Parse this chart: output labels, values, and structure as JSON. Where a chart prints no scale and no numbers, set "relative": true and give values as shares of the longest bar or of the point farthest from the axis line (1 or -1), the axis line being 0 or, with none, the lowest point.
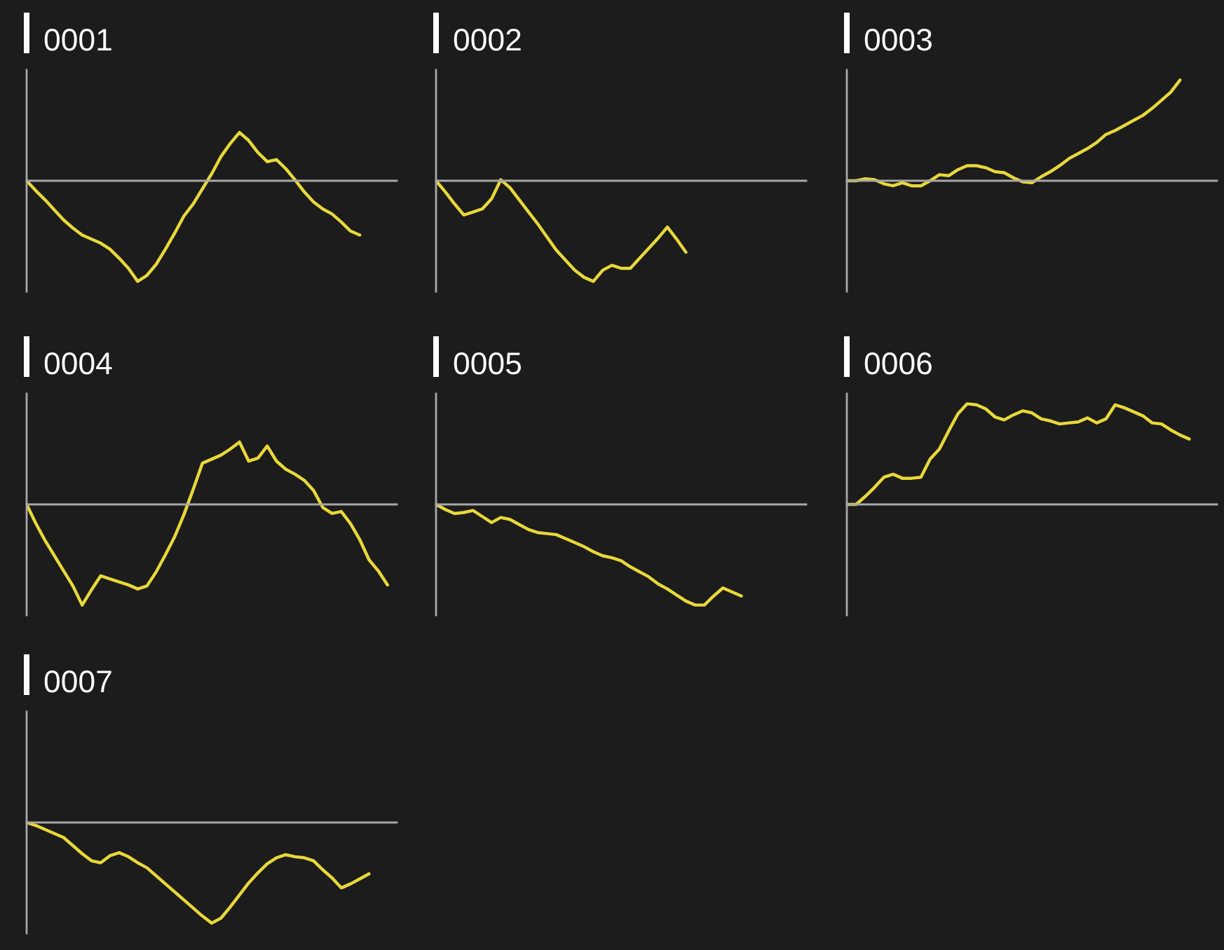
{
  "chart_data": [
    {
      "type": "line",
      "title": "0001",
      "relative": true,
      "categories": [
        null,
        null,
        null,
        null,
        null,
        null,
        null,
        null,
        null,
        null,
        null,
        null,
        null,
        null,
        null,
        null,
        null,
        null,
        null,
        null,
        null,
        null,
        null,
        null,
        null,
        null,
        null,
        null,
        null,
        null,
        null,
        null,
        null,
        null,
        null,
        null,
        null,
        null,
        null,
        null,
        null
      ],
      "series": [
        {
          "color": "#e8d83a",
          "values": [
            0,
            -0.1,
            -0.19,
            -0.29,
            -0.39,
            -0.47,
            -0.54,
            -0.58,
            -0.62,
            -0.68,
            -0.77,
            -0.87,
            -1,
            -0.94,
            -0.83,
            -0.68,
            -0.52,
            -0.35,
            -0.23,
            -0.08,
            0.07,
            0.24,
            0.37,
            0.48,
            0.4,
            0.28,
            0.19,
            0.21,
            0.12,
            0.01,
            -0.11,
            -0.21,
            -0.28,
            -0.33,
            -0.41,
            -0.5,
            -0.54,
            null,
            null,
            null,
            null
          ]
        }
      ]
    },
    {
      "type": "line",
      "title": "0002",
      "relative": true,
      "categories": [
        null,
        null,
        null,
        null,
        null,
        null,
        null,
        null,
        null,
        null,
        null,
        null,
        null,
        null,
        null,
        null,
        null,
        null,
        null,
        null,
        null,
        null,
        null,
        null,
        null,
        null,
        null,
        null,
        null,
        null,
        null,
        null,
        null,
        null,
        null,
        null,
        null,
        null,
        null,
        null,
        null
      ],
      "series": [
        {
          "color": "#e8d83a",
          "values": [
            0,
            -0.11,
            -0.23,
            -0.34,
            -0.31,
            -0.28,
            -0.18,
            0.01,
            -0.07,
            -0.19,
            -0.31,
            -0.43,
            -0.56,
            -0.69,
            -0.79,
            -0.89,
            -0.96,
            -1,
            -0.89,
            -0.84,
            -0.87,
            -0.87,
            -0.77,
            -0.67,
            -0.57,
            -0.46,
            -0.58,
            -0.71,
            null,
            null,
            null,
            null,
            null,
            null,
            null,
            null,
            null,
            null,
            null,
            null,
            null
          ]
        }
      ]
    },
    {
      "type": "line",
      "title": "0003",
      "relative": true,
      "categories": [
        null,
        null,
        null,
        null,
        null,
        null,
        null,
        null,
        null,
        null,
        null,
        null,
        null,
        null,
        null,
        null,
        null,
        null,
        null,
        null,
        null,
        null,
        null,
        null,
        null,
        null,
        null,
        null,
        null,
        null,
        null,
        null,
        null,
        null,
        null,
        null,
        null,
        null,
        null,
        null,
        null
      ],
      "series": [
        {
          "color": "#e8d83a",
          "values": [
            0,
            0.0,
            0.02,
            0.01,
            -0.03,
            -0.05,
            -0.02,
            -0.05,
            -0.05,
            0.0,
            0.06,
            0.05,
            0.11,
            0.15,
            0.15,
            0.13,
            0.09,
            0.08,
            0.03,
            -0.01,
            -0.02,
            0.04,
            0.09,
            0.15,
            0.22,
            0.27,
            0.32,
            0.38,
            0.46,
            0.5,
            0.55,
            0.6,
            0.65,
            0.72,
            0.8,
            0.88,
            1,
            null,
            null,
            null,
            null
          ]
        }
      ]
    },
    {
      "type": "line",
      "title": "0004",
      "relative": true,
      "categories": [
        null,
        null,
        null,
        null,
        null,
        null,
        null,
        null,
        null,
        null,
        null,
        null,
        null,
        null,
        null,
        null,
        null,
        null,
        null,
        null,
        null,
        null,
        null,
        null,
        null,
        null,
        null,
        null,
        null,
        null,
        null,
        null,
        null,
        null,
        null,
        null,
        null,
        null,
        null,
        null,
        null
      ],
      "series": [
        {
          "color": "#e8d83a",
          "values": [
            0,
            -0.19,
            -0.36,
            -0.51,
            -0.66,
            -0.81,
            -1,
            -0.85,
            -0.71,
            -0.74,
            -0.77,
            -0.8,
            -0.84,
            -0.81,
            -0.67,
            -0.5,
            -0.32,
            -0.1,
            0.15,
            0.41,
            0.45,
            0.49,
            0.55,
            0.62,
            0.43,
            0.46,
            0.58,
            0.43,
            0.35,
            0.3,
            0.24,
            0.14,
            -0.03,
            -0.09,
            -0.07,
            -0.19,
            -0.35,
            -0.55,
            -0.66,
            -0.8,
            null
          ]
        }
      ]
    },
    {
      "type": "line",
      "title": "0005",
      "relative": true,
      "categories": [
        null,
        null,
        null,
        null,
        null,
        null,
        null,
        null,
        null,
        null,
        null,
        null,
        null,
        null,
        null,
        null,
        null,
        null,
        null,
        null,
        null,
        null,
        null,
        null,
        null,
        null,
        null,
        null,
        null,
        null,
        null,
        null,
        null,
        null,
        null,
        null,
        null,
        null,
        null,
        null,
        null
      ],
      "series": [
        {
          "color": "#e8d83a",
          "values": [
            0,
            -0.05,
            -0.09,
            -0.08,
            -0.06,
            -0.12,
            -0.18,
            -0.13,
            -0.15,
            -0.2,
            -0.25,
            -0.28,
            -0.29,
            -0.3,
            -0.34,
            -0.38,
            -0.42,
            -0.47,
            -0.51,
            -0.53,
            -0.56,
            -0.62,
            -0.67,
            -0.72,
            -0.79,
            -0.84,
            -0.9,
            -0.96,
            -1,
            -1,
            -0.91,
            -0.83,
            -0.87,
            -0.91,
            null,
            null,
            null,
            null,
            null,
            null,
            null
          ]
        }
      ]
    },
    {
      "type": "line",
      "title": "0006",
      "relative": true,
      "categories": [
        null,
        null,
        null,
        null,
        null,
        null,
        null,
        null,
        null,
        null,
        null,
        null,
        null,
        null,
        null,
        null,
        null,
        null,
        null,
        null,
        null,
        null,
        null,
        null,
        null,
        null,
        null,
        null,
        null,
        null,
        null,
        null,
        null,
        null,
        null,
        null,
        null,
        null,
        null,
        null,
        null
      ],
      "series": [
        {
          "color": "#e8d83a",
          "values": [
            0,
            0,
            0.08,
            0.17,
            0.27,
            0.3,
            0.26,
            0.26,
            0.27,
            0.45,
            0.55,
            0.73,
            0.9,
            1,
            0.99,
            0.95,
            0.87,
            0.84,
            0.89,
            0.93,
            0.91,
            0.85,
            0.83,
            0.8,
            0.81,
            0.82,
            0.86,
            0.81,
            0.85,
            0.99,
            0.96,
            0.92,
            0.88,
            0.81,
            0.8,
            0.74,
            0.69,
            0.65,
            null,
            null,
            null
          ]
        }
      ]
    },
    {
      "type": "line",
      "title": "0007",
      "relative": true,
      "categories": [
        null,
        null,
        null,
        null,
        null,
        null,
        null,
        null,
        null,
        null,
        null,
        null,
        null,
        null,
        null,
        null,
        null,
        null,
        null,
        null,
        null,
        null,
        null,
        null,
        null,
        null,
        null,
        null,
        null,
        null,
        null,
        null,
        null,
        null,
        null,
        null,
        null,
        null,
        null,
        null,
        null
      ],
      "series": [
        {
          "color": "#e8d83a",
          "values": [
            0,
            -0.03,
            -0.07,
            -0.11,
            -0.15,
            -0.23,
            -0.31,
            -0.38,
            -0.4,
            -0.33,
            -0.3,
            -0.34,
            -0.4,
            -0.45,
            -0.53,
            -0.61,
            -0.69,
            -0.77,
            -0.85,
            -0.93,
            -1,
            -0.95,
            -0.84,
            -0.72,
            -0.6,
            -0.5,
            -0.41,
            -0.35,
            -0.32,
            -0.34,
            -0.35,
            -0.38,
            -0.47,
            -0.55,
            -0.65,
            -0.61,
            -0.56,
            -0.51,
            null,
            null,
            null
          ]
        }
      ]
    }
  ]
}
